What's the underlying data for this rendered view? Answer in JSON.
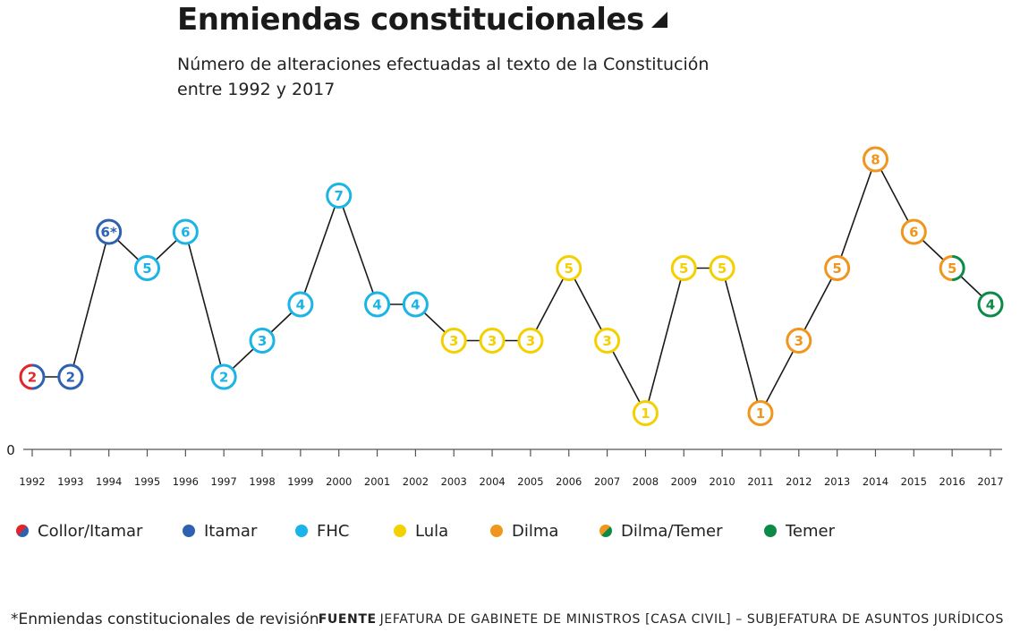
{
  "header": {
    "title": "Enmiendas constitucionales",
    "subtitle": "Número de alteraciones efectuadas al texto de la Constitución entre 1992 y 2017"
  },
  "legend": [
    {
      "label": "Collor/Itamar",
      "colors": [
        "#e0262b",
        "#2e62b0"
      ]
    },
    {
      "label": "Itamar",
      "colors": [
        "#2e62b0"
      ]
    },
    {
      "label": "FHC",
      "colors": [
        "#1ab4e6"
      ]
    },
    {
      "label": "Lula",
      "colors": [
        "#f5d000"
      ]
    },
    {
      "label": "Dilma",
      "colors": [
        "#f0961e"
      ]
    },
    {
      "label": "Dilma/Temer",
      "colors": [
        "#f0961e",
        "#0e8a48"
      ]
    },
    {
      "label": "Temer",
      "colors": [
        "#0e8a48"
      ]
    }
  ],
  "footer": {
    "footnote": "*Enmiendas constitucionales de revisión",
    "source_label": "FUENTE",
    "source_text": "JEFATURA DE GABINETE DE MINISTROS [CASA CIVIL] – SUBJEFATURA DE ASUNTOS JURÍDICOS"
  },
  "chart_data": {
    "type": "line",
    "title": "Enmiendas constitucionales",
    "subtitle": "Número de alteraciones efectuadas al texto de la Constitución entre 1992 y 2017",
    "xlabel": "",
    "ylabel": "",
    "ylim": [
      0,
      8
    ],
    "y_tick_labels": [
      "0"
    ],
    "grid": false,
    "legend_position": "bottom",
    "categories": [
      "1992",
      "1993",
      "1994",
      "1995",
      "1996",
      "1997",
      "1998",
      "1999",
      "2000",
      "2001",
      "2002",
      "2003",
      "2004",
      "2005",
      "2006",
      "2007",
      "2008",
      "2009",
      "2010",
      "2011",
      "2012",
      "2013",
      "2014",
      "2015",
      "2016",
      "2017"
    ],
    "series": [
      {
        "values": [
          2,
          2,
          6,
          5,
          6,
          2,
          3,
          4,
          7,
          4,
          4,
          3,
          3,
          3,
          5,
          3,
          1,
          5,
          5,
          1,
          3,
          5,
          8,
          6,
          5,
          4
        ],
        "point_labels": [
          "2",
          "2",
          "6*",
          "5",
          "6",
          "2",
          "3",
          "4",
          "7",
          "4",
          "4",
          "3",
          "3",
          "3",
          "5",
          "3",
          "1",
          "5",
          "5",
          "1",
          "3",
          "5",
          "8",
          "6",
          "5",
          "4"
        ],
        "government": [
          "Collor/Itamar",
          "Itamar",
          "Itamar",
          "FHC",
          "FHC",
          "FHC",
          "FHC",
          "FHC",
          "FHC",
          "FHC",
          "FHC",
          "Lula",
          "Lula",
          "Lula",
          "Lula",
          "Lula",
          "Lula",
          "Lula",
          "Lula",
          "Dilma",
          "Dilma",
          "Dilma",
          "Dilma",
          "Dilma",
          "Dilma/Temer",
          "Temer"
        ]
      }
    ]
  }
}
